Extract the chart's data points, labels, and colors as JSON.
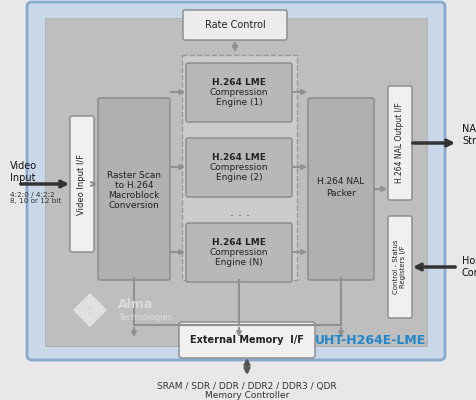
{
  "bg_outer_color": "#c8d8e8",
  "bg_inner_color": "#c0c0c0",
  "box_light": "#ececec",
  "box_gray": "#b8b8b8",
  "box_dark": "#a8a8a8",
  "dashed_fill": "#d0d0d0",
  "arrow_color": "#909090",
  "arrow_dark": "#333333",
  "text_color": "#222222",
  "text_blue": "#2288cc",
  "uht_label": "UHT-H264E-LME",
  "bottom_text1": "SRAM / SDR / DDR / DDR2 / DDR3 / QDR",
  "bottom_text2": "Memory Controller"
}
